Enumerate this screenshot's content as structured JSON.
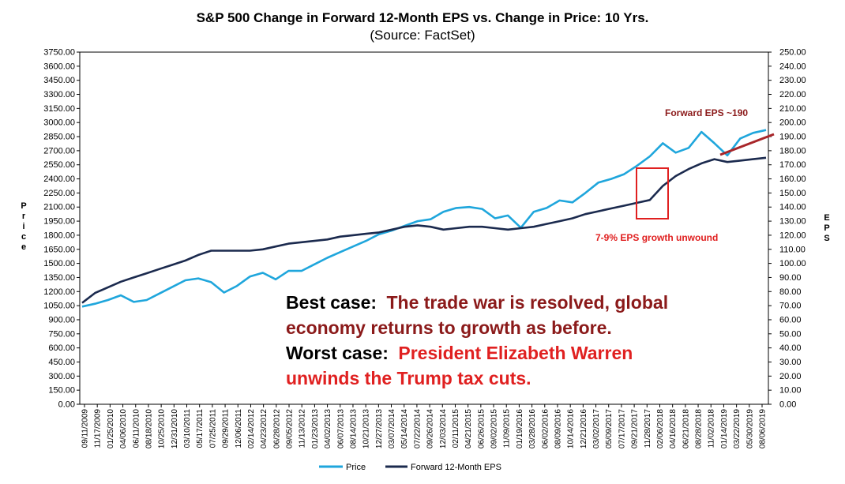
{
  "chart_data": {
    "type": "line",
    "title": "S&P 500 Change in Forward 12-Month EPS vs. Change in Price: 10 Yrs.",
    "subtitle": "(Source: FactSet)",
    "ylabel_left": "Price",
    "ylabel_right": "EPS",
    "ylim_left": [
      0,
      3750
    ],
    "ylim_right": [
      0,
      250
    ],
    "y_ticks_left": [
      "3750.00",
      "3600.00",
      "3450.00",
      "3300.00",
      "3150.00",
      "3000.00",
      "2850.00",
      "2700.00",
      "2550.00",
      "2400.00",
      "2250.00",
      "2100.00",
      "1950.00",
      "1800.00",
      "1650.00",
      "1500.00",
      "1350.00",
      "1200.00",
      "1050.00",
      "900.00",
      "750.00",
      "600.00",
      "450.00",
      "300.00",
      "150.00",
      "0.00"
    ],
    "y_ticks_right": [
      "250.00",
      "240.00",
      "230.00",
      "220.00",
      "210.00",
      "200.00",
      "190.00",
      "180.00",
      "170.00",
      "160.00",
      "150.00",
      "140.00",
      "130.00",
      "120.00",
      "110.00",
      "100.00",
      "90.00",
      "80.00",
      "70.00",
      "60.00",
      "50.00",
      "40.00",
      "30.00",
      "20.00",
      "10.00",
      "0.00"
    ],
    "x_ticks": [
      "09/11/2009",
      "11/17/2009",
      "01/25/2010",
      "04/06/2010",
      "06/11/2010",
      "08/18/2010",
      "10/25/2010",
      "12/31/2010",
      "03/10/2011",
      "05/17/2011",
      "07/25/2011",
      "09/29/2011",
      "12/06/2011",
      "02/14/2012",
      "04/23/2012",
      "06/28/2012",
      "09/05/2012",
      "11/13/2012",
      "01/23/2013",
      "04/02/2013",
      "06/07/2013",
      "08/14/2013",
      "10/21/2013",
      "12/27/2013",
      "03/07/2014",
      "05/14/2014",
      "07/22/2014",
      "09/26/2014",
      "12/03/2014",
      "02/11/2015",
      "04/21/2015",
      "06/26/2015",
      "09/02/2015",
      "11/09/2015",
      "01/19/2016",
      "03/28/2016",
      "06/02/2016",
      "08/09/2016",
      "10/14/2016",
      "12/21/2016",
      "03/02/2017",
      "05/09/2017",
      "07/17/2017",
      "09/21/2017",
      "11/28/2017",
      "02/06/2018",
      "04/16/2018",
      "06/21/2018",
      "08/28/2018",
      "11/02/2018",
      "01/14/2019",
      "03/22/2019",
      "05/30/2019",
      "08/06/2019"
    ],
    "series": [
      {
        "name": "Price",
        "axis": "left",
        "color": "#1FA6DC",
        "values": [
          1040,
          1070,
          1110,
          1160,
          1090,
          1110,
          1180,
          1250,
          1320,
          1340,
          1300,
          1190,
          1260,
          1360,
          1400,
          1330,
          1420,
          1420,
          1490,
          1560,
          1620,
          1680,
          1740,
          1810,
          1850,
          1900,
          1950,
          1970,
          2050,
          2090,
          2100,
          2080,
          1980,
          2010,
          1880,
          2050,
          2090,
          2170,
          2150,
          2250,
          2360,
          2400,
          2450,
          2540,
          2640,
          2780,
          2680,
          2730,
          2900,
          2780,
          2650,
          2830,
          2890,
          2920
        ]
      },
      {
        "name": "Forward 12-Month EPS",
        "axis": "right",
        "color": "#1B2A4E",
        "values": [
          72,
          79,
          83,
          87,
          90,
          93,
          96,
          99,
          102,
          106,
          109,
          109,
          109,
          109,
          110,
          112,
          114,
          115,
          116,
          117,
          119,
          120,
          121,
          122,
          124,
          126,
          127,
          126,
          124,
          125,
          126,
          126,
          125,
          124,
          125,
          126,
          128,
          130,
          132,
          135,
          137,
          139,
          141,
          143,
          145,
          155,
          162,
          167,
          171,
          174,
          172,
          173,
          174,
          175
        ]
      }
    ],
    "legend_position": "bottom",
    "grid": false,
    "annotations": {
      "eps_label": "Forward EPS ~190",
      "box_label": "7-9% EPS growth unwound",
      "best_case_prefix": "Best case:",
      "best_case_line1": "The trade war is resolved, global",
      "best_case_line2": "economy returns to growth as before.",
      "worst_case_prefix": "Worst case:",
      "worst_case_line1": "President Elizabeth Warren",
      "worst_case_line2": "unwinds the Trump tax cuts."
    },
    "colors": {
      "annotation_dark_red": "#8B1A1A",
      "annotation_red": "#E02020",
      "text_black": "#000000"
    }
  }
}
